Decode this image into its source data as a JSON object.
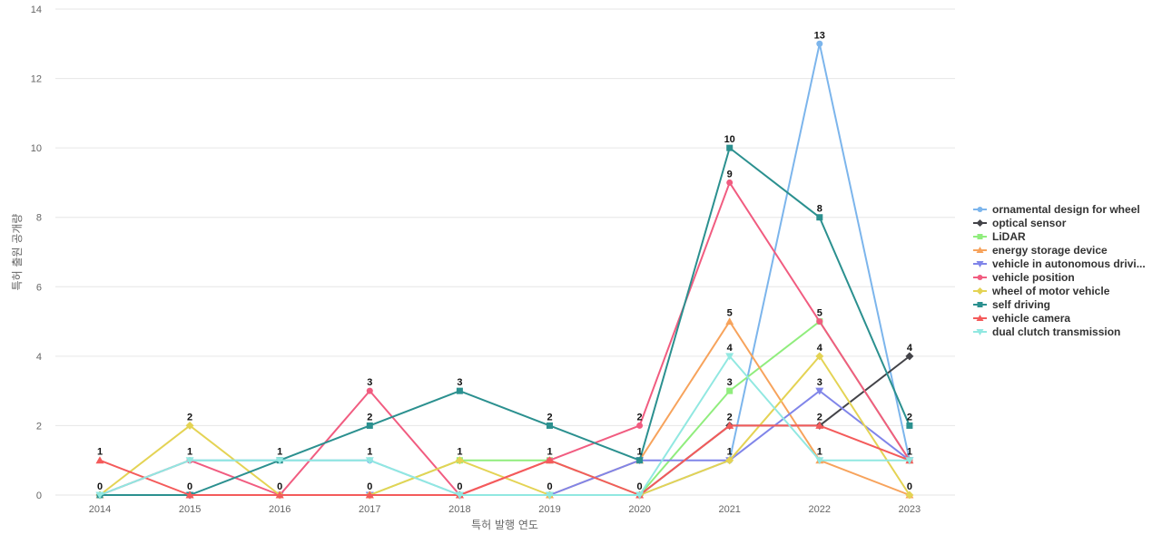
{
  "chart_data": {
    "type": "line",
    "xlabel": "특허 발행 연도",
    "ylabel": "특허 출원 공개량",
    "ylim": [
      0,
      14
    ],
    "yticks": [
      0,
      2,
      4,
      6,
      8,
      10,
      12,
      14
    ],
    "grid": true,
    "legend_position": "right",
    "categories": [
      "2014",
      "2015",
      "2016",
      "2017",
      "2018",
      "2019",
      "2020",
      "2021",
      "2022",
      "2023"
    ],
    "series": [
      {
        "name": "ornamental design for wheel",
        "legend_label": "ornamental design for wheel",
        "color": "#7cb5ec",
        "marker": "circle",
        "values": [
          0,
          1,
          1,
          1,
          0,
          0,
          0,
          1,
          13,
          1
        ]
      },
      {
        "name": "optical sensor",
        "legend_label": "optical sensor",
        "color": "#434348",
        "marker": "diamond",
        "values": [
          0,
          0,
          0,
          0,
          0,
          0,
          0,
          2,
          2,
          4
        ]
      },
      {
        "name": "LiDAR",
        "legend_label": "LiDAR",
        "color": "#90ed7d",
        "marker": "square",
        "values": [
          0,
          0,
          0,
          0,
          1,
          1,
          0,
          3,
          5,
          1
        ]
      },
      {
        "name": "energy storage device",
        "legend_label": "energy storage device",
        "color": "#f7a35c",
        "marker": "triangle",
        "values": [
          0,
          0,
          0,
          0,
          0,
          0,
          1,
          5,
          1,
          0
        ]
      },
      {
        "name": "vehicle in autonomous driving",
        "legend_label": "vehicle in autonomous drivi...",
        "color": "#8085e9",
        "marker": "triangle-down",
        "values": [
          0,
          0,
          0,
          0,
          0,
          0,
          1,
          1,
          3,
          1
        ]
      },
      {
        "name": "vehicle position",
        "legend_label": "vehicle position",
        "color": "#f15c80",
        "marker": "circle",
        "values": [
          0,
          1,
          0,
          3,
          0,
          1,
          2,
          9,
          5,
          1
        ]
      },
      {
        "name": "wheel of motor vehicle",
        "legend_label": "wheel of motor vehicle",
        "color": "#e4d354",
        "marker": "diamond",
        "values": [
          0,
          2,
          0,
          0,
          1,
          0,
          0,
          1,
          4,
          0
        ]
      },
      {
        "name": "self driving",
        "legend_label": "self driving",
        "color": "#2b908f",
        "marker": "square",
        "values": [
          0,
          0,
          1,
          2,
          3,
          2,
          1,
          10,
          8,
          2
        ]
      },
      {
        "name": "vehicle camera",
        "legend_label": "vehicle camera",
        "color": "#f45b5b",
        "marker": "triangle",
        "values": [
          1,
          0,
          0,
          0,
          0,
          1,
          0,
          2,
          2,
          1
        ]
      },
      {
        "name": "dual clutch transmission",
        "legend_label": "dual clutch transmission",
        "color": "#91e8e1",
        "marker": "triangle-down",
        "values": [
          0,
          1,
          1,
          1,
          0,
          0,
          0,
          4,
          1,
          1
        ]
      }
    ],
    "data_labels": [
      {
        "category": "2014",
        "labels": [
          "1",
          "0"
        ]
      },
      {
        "category": "2015",
        "labels": [
          "2",
          "1",
          "0"
        ]
      },
      {
        "category": "2016",
        "labels": [
          "1",
          "0"
        ]
      },
      {
        "category": "2017",
        "labels": [
          "3",
          "2",
          "1",
          "0"
        ]
      },
      {
        "category": "2018",
        "labels": [
          "3",
          "1",
          "0"
        ]
      },
      {
        "category": "2019",
        "labels": [
          "2",
          "1",
          "0"
        ]
      },
      {
        "category": "2020",
        "labels": [
          "2",
          "1",
          "0"
        ]
      },
      {
        "category": "2021",
        "labels": [
          "10",
          "9",
          "5",
          "4",
          "3",
          "2",
          "1"
        ]
      },
      {
        "category": "2022",
        "labels": [
          "13",
          "8",
          "5",
          "4",
          "3",
          "2",
          "1"
        ]
      },
      {
        "category": "2023",
        "labels": [
          "4",
          "2",
          "1",
          "0"
        ]
      }
    ]
  }
}
